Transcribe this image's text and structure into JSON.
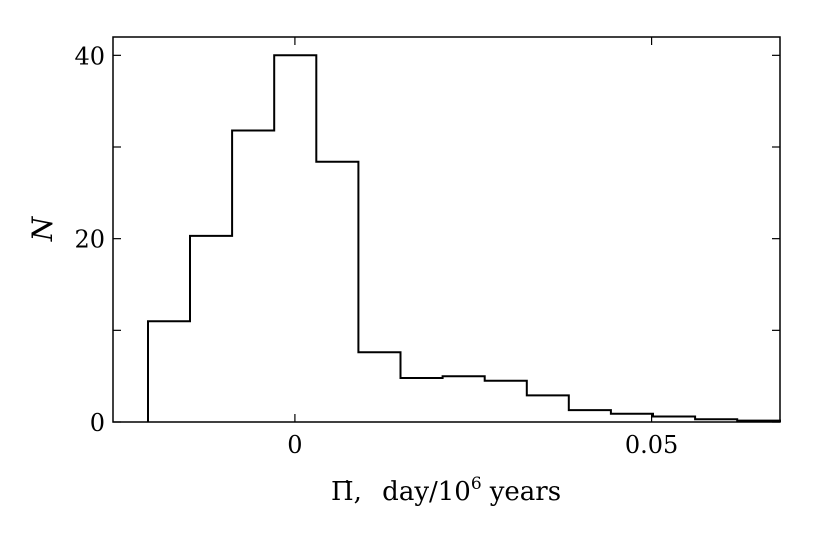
{
  "chart_data": {
    "type": "bar",
    "style": "step-histogram",
    "bin_edges": [
      -0.0206,
      -0.0147,
      -0.0088,
      -0.0029,
      0.003,
      0.0089,
      0.0148,
      0.0207,
      0.0266,
      0.0325,
      0.0384,
      0.0443,
      0.0502,
      0.0561,
      0.062,
      0.068
    ],
    "values": [
      11.0,
      20.3,
      31.8,
      40.0,
      28.4,
      7.6,
      4.8,
      5.0,
      4.5,
      2.9,
      1.3,
      0.9,
      0.6,
      0.3,
      0.15
    ],
    "title": "",
    "xlabel_main": "Π̇,",
    "xlabel_unit": "day/10",
    "xlabel_exp": "6",
    "xlabel_tail": "years",
    "ylabel": "N",
    "xlim": [
      -0.0255,
      0.068
    ],
    "ylim": [
      0,
      42
    ],
    "x_ticks": [
      0,
      0.05
    ],
    "x_tick_labels": [
      "0",
      "0.05"
    ],
    "y_ticks": [
      0,
      10,
      20,
      30,
      40
    ],
    "y_tick_labels": [
      "0",
      "",
      "20",
      "",
      "40"
    ],
    "grid": false,
    "line_color": "#000000"
  }
}
